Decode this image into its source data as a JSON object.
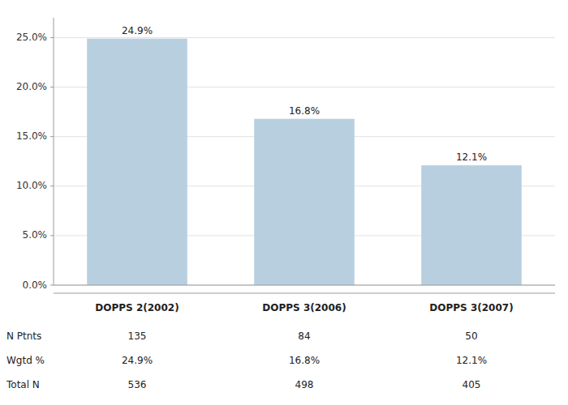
{
  "chart_data": {
    "type": "bar",
    "categories": [
      "DOPPS 2(2002)",
      "DOPPS 3(2006)",
      "DOPPS 3(2007)"
    ],
    "values": [
      24.9,
      16.8,
      12.1
    ],
    "value_labels": [
      "24.9%",
      "16.8%",
      "12.1%"
    ],
    "color": "#b8cfe0",
    "ylim": [
      0,
      27.0
    ],
    "yticks": [
      {
        "value": 0.0,
        "label": "0.0%"
      },
      {
        "value": 5.0,
        "label": "5.0%"
      },
      {
        "value": 10.0,
        "label": "10.0%"
      },
      {
        "value": 15.0,
        "label": "15.0%"
      },
      {
        "value": 20.0,
        "label": "20.0%"
      },
      {
        "value": 25.0,
        "label": "25.0%"
      }
    ],
    "grid": true,
    "data_labels": true,
    "tick_labels": "y",
    "table": [
      [
        "N Ptnts",
        "135",
        "84",
        "50"
      ],
      [
        "Wgtd %",
        "24.9%",
        "16.8%",
        "12.1%"
      ],
      [
        "Total N",
        "536",
        "498",
        "405"
      ]
    ]
  }
}
